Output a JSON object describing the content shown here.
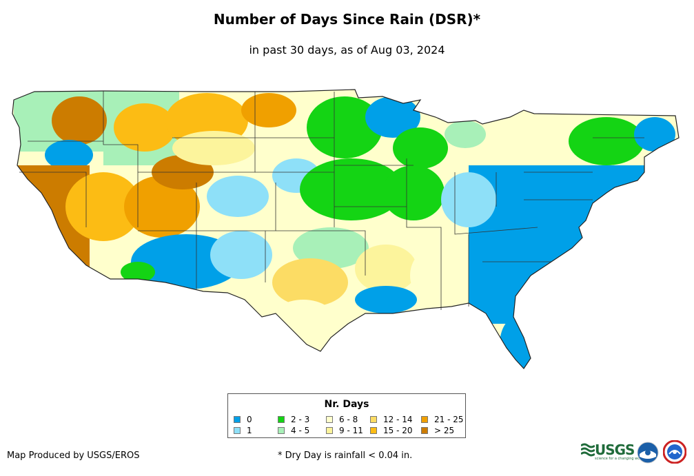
{
  "header": {
    "title": "Number of Days Since Rain (DSR)*",
    "subtitle": "in past 30 days, as of Aug 03, 2024"
  },
  "legend": {
    "title": "Nr. Days",
    "items": [
      {
        "label": "0",
        "color": "#00a0e8"
      },
      {
        "label": "1",
        "color": "#8ee0f8"
      },
      {
        "label": "2 - 3",
        "color": "#14d414"
      },
      {
        "label": "4 - 5",
        "color": "#a8f0b8"
      },
      {
        "label": "6 - 8",
        "color": "#ffffcc"
      },
      {
        "label": "9 - 11",
        "color": "#fcf49c"
      },
      {
        "label": "12 - 14",
        "color": "#fcdc64"
      },
      {
        "label": "15 - 20",
        "color": "#fcbc14"
      },
      {
        "label": "21 - 25",
        "color": "#f0a000"
      },
      {
        "label": "> 25",
        "color": "#cc7c00"
      }
    ]
  },
  "footer": {
    "credit": "Map Produced by USGS/EROS",
    "footnote": "* Dry Day is rainfall < 0.04 in."
  },
  "logos": {
    "usgs_text": "USGS",
    "usgs_tagline": "science for a changing world",
    "usgs_color": "#1f6b3a",
    "noaa_color": "#1b5fa8",
    "nws_color": "#2266cc"
  }
}
